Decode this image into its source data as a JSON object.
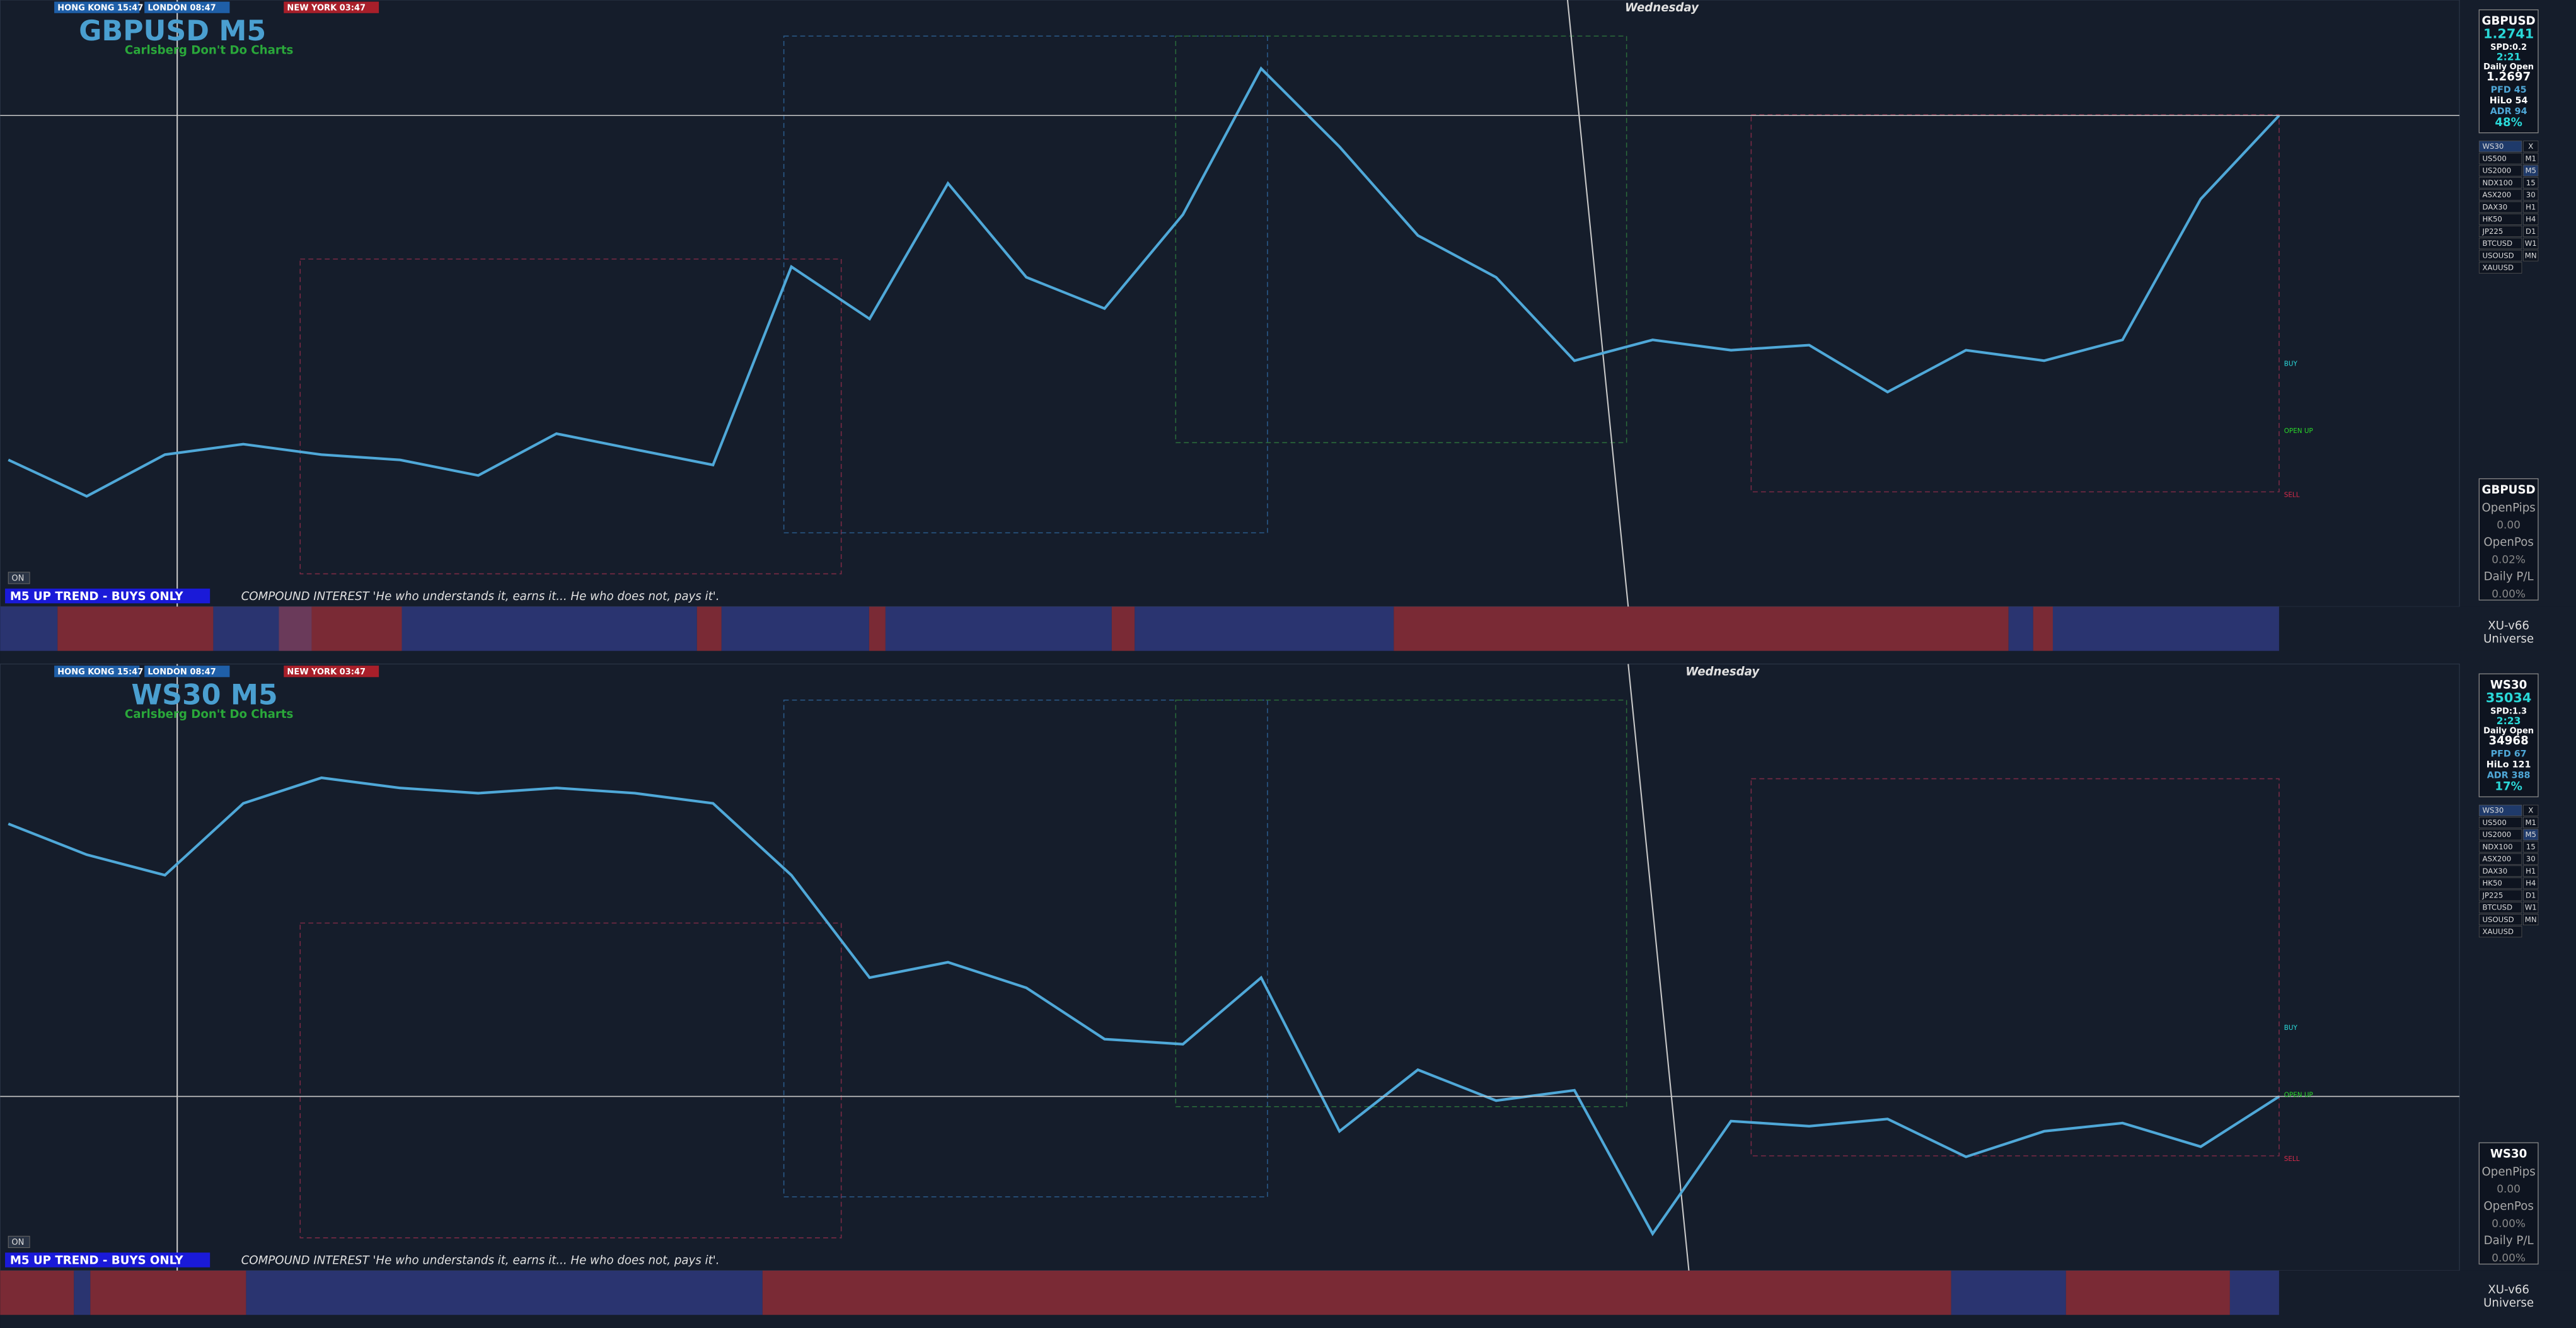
{
  "session_clocks": [
    "HONG KONG 15:47",
    "LONDON 08:47",
    "NEW YORK 03:47"
  ],
  "symbols": [
    "WS30",
    "US500",
    "US2000",
    "NDX100",
    "ASX200",
    "DAX30",
    "HK50",
    "JP225",
    "BTCUSD",
    "USOUSD",
    "XAUUSD"
  ],
  "timeframes": [
    "X",
    "M1",
    "M5",
    "15",
    "30",
    "H1",
    "H4",
    "D1",
    "W1",
    "MN"
  ],
  "panels": [
    {
      "title": "GBPUSD M5",
      "subtitle": "Carlsberg Don't Do Charts",
      "day_label": "Wednesday",
      "trend": "M5  UP TREND - BUYS ONLY",
      "quote": "COMPOUND INTEREST 'He who understands it, earns it... He who does not, pays it'.",
      "toggle": "ON",
      "level_labels": [
        "BUY",
        "OPEN UP",
        "SELL"
      ],
      "info": {
        "symbol": "GBPUSD",
        "price": "1.2741",
        "spread": "SPD:0.2",
        "timer": "2:21",
        "daily_open_label": "Daily Open",
        "daily_open": "1.2697",
        "stats": [
          "PFD 45",
          "HiLo 54",
          "ADR 94"
        ],
        "percent": "48%"
      },
      "account": {
        "symbol": "GBPUSD",
        "rows": [
          "OpenPips",
          "0.00",
          "OpenPos",
          "0.02%",
          "Daily P/L",
          "0.00%"
        ]
      },
      "indicator": [
        "XU-v66",
        "Universe"
      ],
      "price": {
        "ylim": [
          1.265,
          1.276
        ],
        "values": [
          1.2675,
          1.2668,
          1.2676,
          1.2678,
          1.2676,
          1.2675,
          1.2672,
          1.268,
          1.2677,
          1.2674,
          1.2712,
          1.2702,
          1.2728,
          1.271,
          1.2704,
          1.2722,
          1.275,
          1.2735,
          1.2718,
          1.271,
          1.2694,
          1.2698,
          1.2696,
          1.2697,
          1.2688,
          1.2696,
          1.2694,
          1.2698,
          1.2725,
          1.2741
        ]
      }
    },
    {
      "title": "WS30 M5",
      "subtitle": "Carlsberg Don't Do Charts",
      "day_label": "Wednesday",
      "trend": "M5  UP TREND - BUYS ONLY",
      "quote": "COMPOUND INTEREST 'He who understands it, earns it... He who does not, pays it'.",
      "toggle": "ON",
      "level_labels": [
        "BUY",
        "OPEN UP",
        "SELL"
      ],
      "info": {
        "symbol": "WS30",
        "price": "35034",
        "spread": "SPD:1.3",
        "timer": "2:23",
        "daily_open_label": "Daily Open",
        "daily_open": "34968",
        "stats": [
          "PFD 67",
          "HiLo 121",
          "ADR 388"
        ],
        "percent": "17%"
      },
      "account": {
        "symbol": "WS30",
        "rows": [
          "OpenPips",
          "0.00",
          "OpenPos",
          "0.00%",
          "Daily P/L",
          "0.00%"
        ]
      },
      "indicator": [
        "XU-v66",
        "Universe"
      ],
      "price": {
        "ylim": [
          34880,
          35440
        ],
        "values": [
          35300,
          35270,
          35250,
          35320,
          35345,
          35335,
          35330,
          35335,
          35330,
          35320,
          35250,
          35150,
          35165,
          35140,
          35090,
          35085,
          35150,
          35000,
          35060,
          35030,
          35040,
          34900,
          35010,
          35005,
          35012,
          34975,
          35000,
          35008,
          34985,
          35034
        ]
      }
    }
  ]
}
